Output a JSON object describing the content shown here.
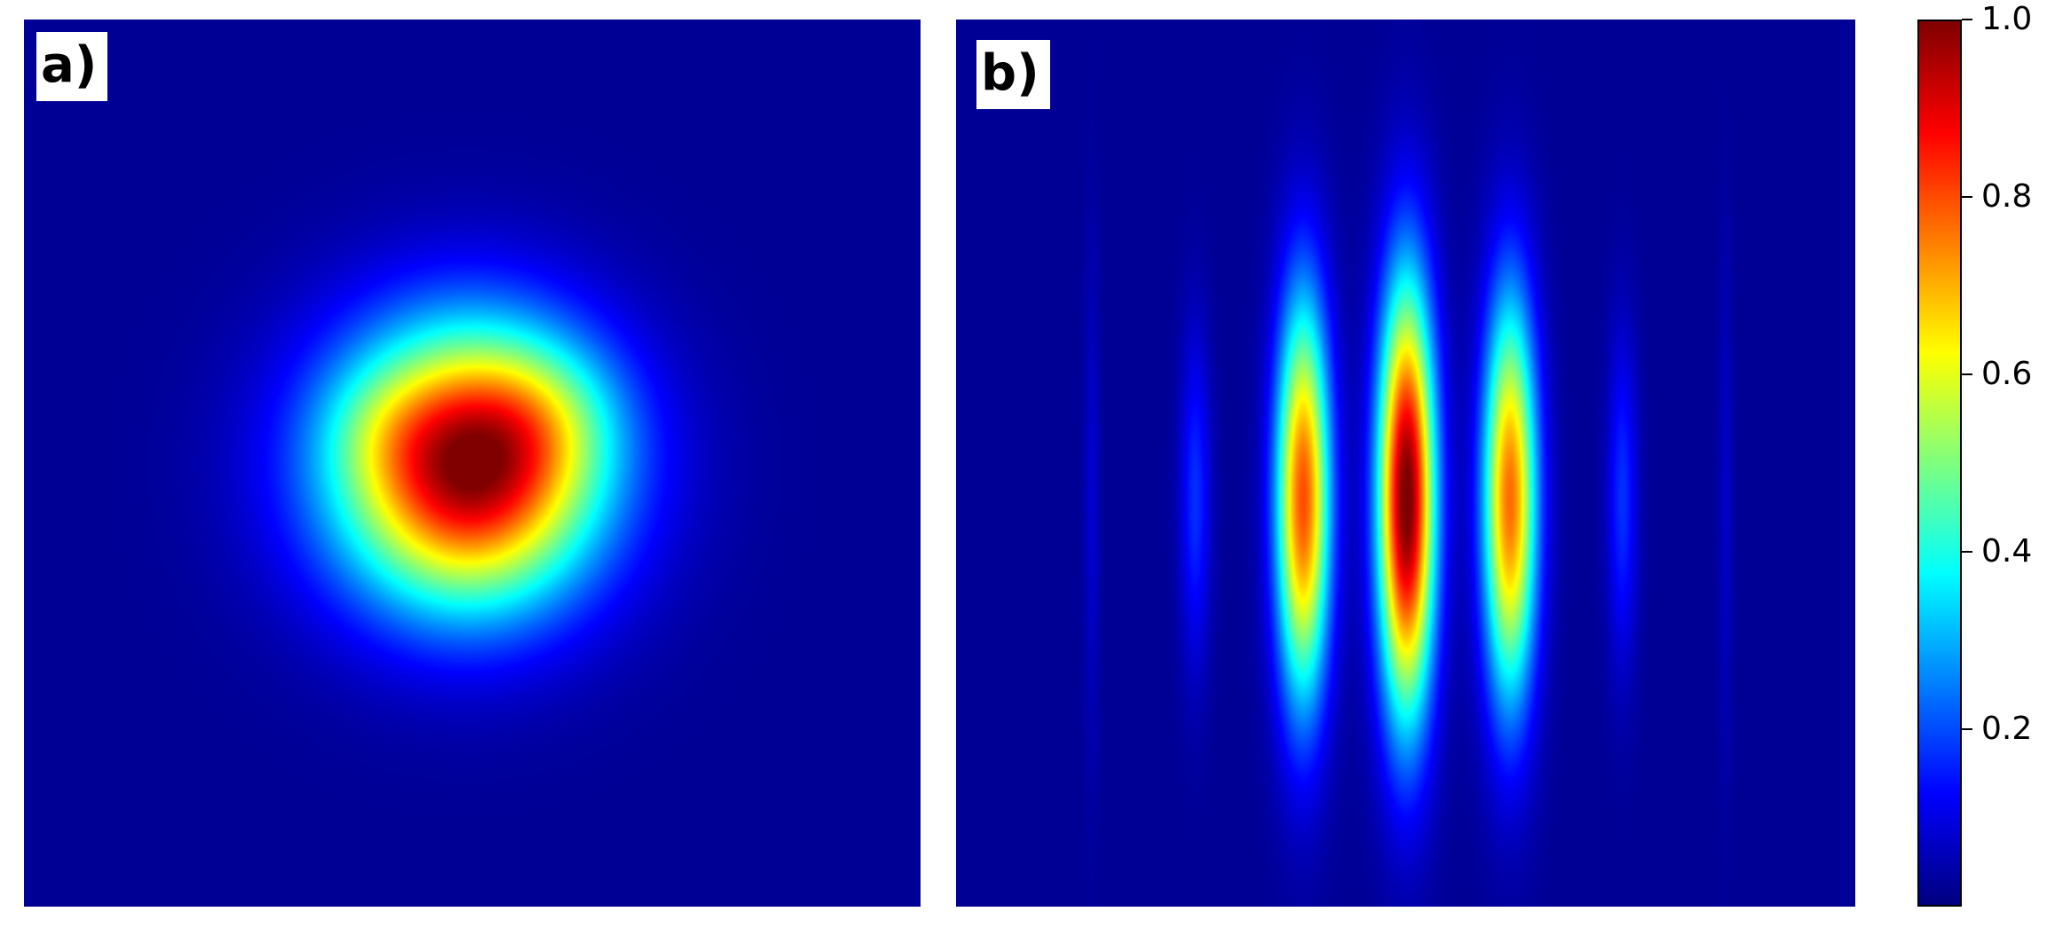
{
  "chart_data": [
    {
      "type": "heatmap",
      "panel_label": "a)",
      "description_values": {
        "peak_value": 1.0,
        "background_value": 0.02
      },
      "xlabel": "",
      "ylabel": ""
    },
    {
      "type": "heatmap",
      "panel_label": "b)",
      "description_values": {
        "peak_value": 1.0,
        "fringe_peaks": [
          0.15,
          0.78,
          1.0,
          0.75,
          0.15
        ],
        "background_value": 0.02
      },
      "xlabel": "",
      "ylabel": ""
    }
  ],
  "colorbar": {
    "colormap": "jet",
    "range": [
      0.0,
      1.0
    ],
    "ticks": [
      {
        "value": 1.0,
        "label": "1.0"
      },
      {
        "value": 0.8,
        "label": "0.8"
      },
      {
        "value": 0.6,
        "label": "0.6"
      },
      {
        "value": 0.4,
        "label": "0.4"
      },
      {
        "value": 0.2,
        "label": "0.2"
      }
    ]
  }
}
